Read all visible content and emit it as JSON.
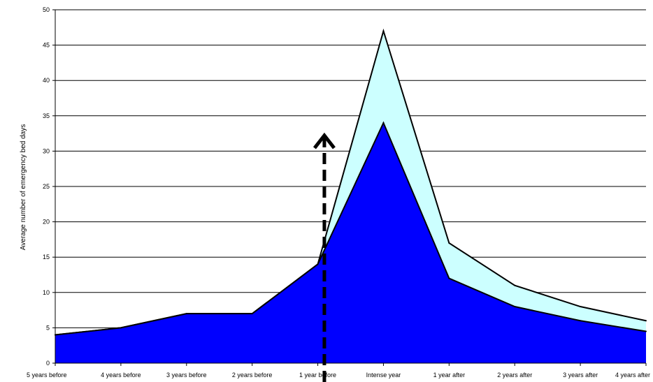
{
  "chart_data": {
    "type": "area",
    "title": "",
    "xlabel": "",
    "ylabel": "Average number of emergency bed days",
    "ylim": [
      0,
      50
    ],
    "yticks": [
      0,
      5,
      10,
      15,
      20,
      25,
      30,
      35,
      40,
      45,
      50
    ],
    "grid": true,
    "legend": "none",
    "categories": [
      "5 years before",
      "4 years before",
      "3 years before",
      "2 years before",
      "1 year before",
      "Intense year",
      "1 year after",
      "2 years after",
      "3 years after",
      "4 years after"
    ],
    "series": [
      {
        "values": [
          4,
          5,
          7,
          7,
          14,
          34,
          12,
          8,
          6,
          4.5
        ],
        "color": "#0000ff"
      },
      {
        "values": [
          4,
          5,
          7,
          7,
          14,
          47,
          17,
          11,
          8,
          6
        ],
        "color": "#ccffff"
      }
    ],
    "annotation": {
      "type": "dashed-arrow",
      "x_between": [
        4,
        5
      ],
      "x_offset": 0.1,
      "y_from": 0,
      "y_to": 34
    }
  }
}
